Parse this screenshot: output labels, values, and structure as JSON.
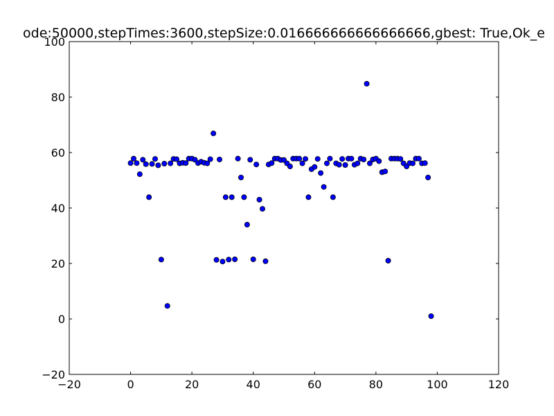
{
  "chart_data": {
    "type": "scatter",
    "title": "ode:50000,stepTimes:3600,stepSize:0.016666666666666666,gbest: True,Ok_e",
    "xlabel": "",
    "ylabel": "",
    "xlim": [
      -20,
      120
    ],
    "ylim": [
      -20,
      100
    ],
    "xticks": [
      -20,
      0,
      20,
      40,
      60,
      80,
      100,
      120
    ],
    "yticks": [
      -20,
      0,
      20,
      40,
      60,
      80,
      100
    ],
    "xtick_labels": [
      "−20",
      "0",
      "20",
      "40",
      "60",
      "80",
      "100",
      "120"
    ],
    "ytick_labels": [
      "−20",
      "0",
      "20",
      "40",
      "60",
      "80",
      "100"
    ],
    "grid": false,
    "marker_color": "#0000ff",
    "marker_edge_color": "#000000",
    "x": [
      0,
      1,
      2,
      3,
      4,
      5,
      6,
      7,
      8,
      9,
      10,
      11,
      12,
      13,
      14,
      15,
      16,
      17,
      18,
      19,
      20,
      21,
      22,
      23,
      24,
      25,
      26,
      27,
      28,
      29,
      30,
      31,
      32,
      33,
      34,
      35,
      36,
      37,
      38,
      39,
      40,
      41,
      42,
      43,
      44,
      45,
      46,
      47,
      48,
      49,
      50,
      51,
      52,
      53,
      54,
      55,
      56,
      57,
      58,
      59,
      60,
      61,
      62,
      63,
      64,
      65,
      66,
      67,
      68,
      69,
      70,
      71,
      72,
      73,
      74,
      75,
      76,
      77,
      78,
      79,
      80,
      81,
      82,
      83,
      84,
      85,
      86,
      87,
      88,
      89,
      90,
      91,
      92,
      93,
      94,
      95,
      96,
      97,
      98
    ],
    "y": [
      56.2,
      57.8,
      56.2,
      52.2,
      57.4,
      55.8,
      43.9,
      55.9,
      57.7,
      55.4,
      21.4,
      56.0,
      4.7,
      56.1,
      57.7,
      57.6,
      56.1,
      56.3,
      56.2,
      57.8,
      57.8,
      57.4,
      56.2,
      56.7,
      56.3,
      56.1,
      57.6,
      66.9,
      21.3,
      57.5,
      20.7,
      43.9,
      21.4,
      43.9,
      21.5,
      57.8,
      51.0,
      43.9,
      34.0,
      57.4,
      21.5,
      55.7,
      43.0,
      39.7,
      20.8,
      55.7,
      56.2,
      57.8,
      57.8,
      57.3,
      57.3,
      56.1,
      55.0,
      57.8,
      57.8,
      57.8,
      56.1,
      57.7,
      43.9,
      54.0,
      54.8,
      57.7,
      52.6,
      47.6,
      56.1,
      57.8,
      43.9,
      56.1,
      55.6,
      57.7,
      55.5,
      57.8,
      57.8,
      55.6,
      56.1,
      57.8,
      57.5,
      84.8,
      56.1,
      57.5,
      57.8,
      56.9,
      52.9,
      53.2,
      21.0,
      57.8,
      57.8,
      57.8,
      57.7,
      56.1,
      55.0,
      56.2,
      56.1,
      57.8,
      57.8,
      56.1,
      56.2,
      51.0,
      1.0
    ]
  }
}
